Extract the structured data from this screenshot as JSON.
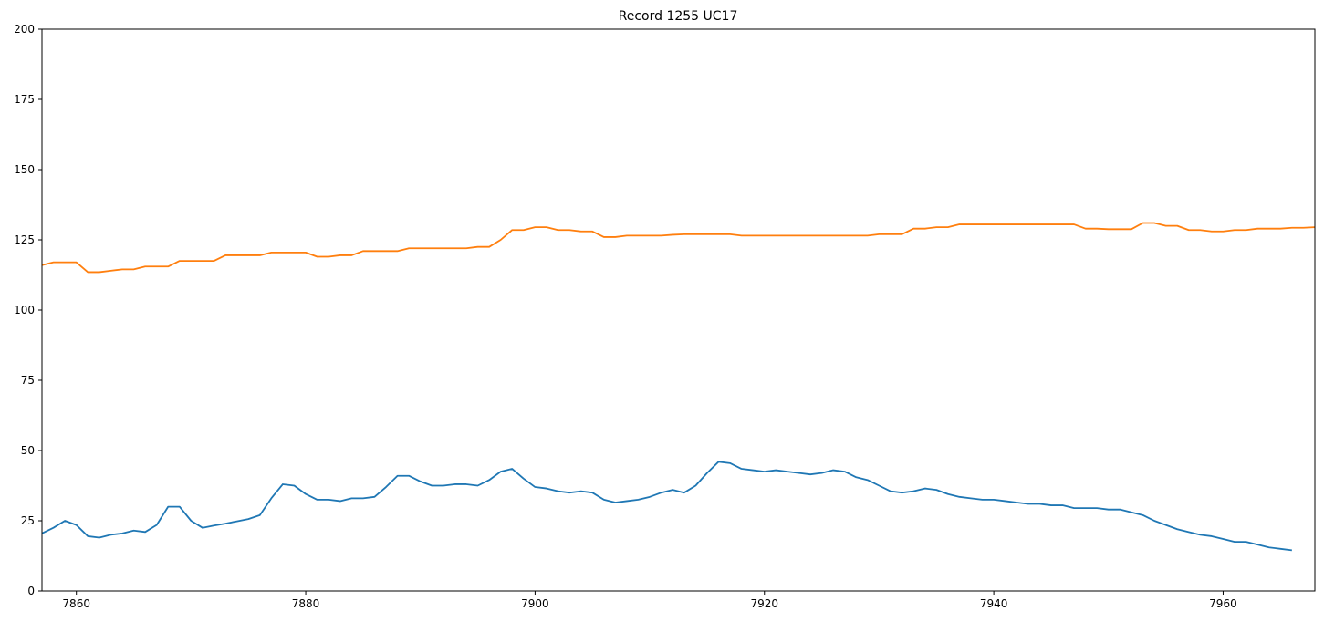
{
  "chart_data": {
    "type": "line",
    "title": "Record 1255 UC17",
    "xlabel": "",
    "ylabel": "",
    "xlim": [
      7857,
      7968
    ],
    "ylim": [
      0,
      200
    ],
    "xticks": [
      7860,
      7880,
      7900,
      7920,
      7940,
      7960
    ],
    "yticks": [
      0,
      25,
      50,
      75,
      100,
      125,
      150,
      175,
      200
    ],
    "grid": false,
    "x_start": 7857,
    "series": [
      {
        "color": "#1f77b4",
        "values": [
          20.5,
          22.5,
          25,
          23.5,
          19.5,
          19,
          20,
          20.5,
          21.5,
          21,
          23.5,
          30,
          30,
          25,
          22.5,
          23.3,
          24,
          24.8,
          25.6,
          27,
          33,
          38,
          37.5,
          34.5,
          32.5,
          32.5,
          32,
          33,
          33,
          33.5,
          37,
          41,
          41,
          39,
          37.5,
          37.5,
          38,
          38,
          37.5,
          39.5,
          42.5,
          43.5,
          40,
          37,
          36.5,
          35.5,
          35,
          35.5,
          35,
          32.5,
          31.5,
          32,
          32.5,
          33.5,
          35,
          36,
          35,
          37.5,
          42,
          46,
          45.5,
          43.5,
          43,
          42.5,
          43,
          42.5,
          42,
          41.5,
          42,
          43,
          42.5,
          40.5,
          39.5,
          37.5,
          35.5,
          35,
          35.5,
          36.5,
          36,
          34.5,
          33.5,
          33,
          32.5,
          32.5,
          32,
          31.5,
          31,
          31,
          30.5,
          30.5,
          29.5,
          29.5,
          29.5,
          29,
          29,
          28,
          27,
          25,
          23.5,
          22,
          21,
          20,
          19.5,
          18.5,
          17.5,
          17.5,
          16.5,
          15.5,
          15,
          14.5
        ]
      },
      {
        "color": "#ff7f0e",
        "values": [
          116,
          117,
          117,
          117,
          113.5,
          113.5,
          114,
          114.5,
          114.5,
          115.5,
          115.5,
          115.5,
          117.5,
          117.5,
          117.5,
          117.5,
          119.5,
          119.5,
          119.5,
          119.5,
          120.5,
          120.5,
          120.5,
          120.5,
          119,
          119,
          119.5,
          119.5,
          121,
          121,
          121,
          121,
          122,
          122,
          122,
          122,
          122,
          122,
          122.5,
          122.5,
          125,
          128.5,
          128.5,
          129.5,
          129.5,
          128.5,
          128.5,
          128,
          128,
          126,
          126,
          126.5,
          126.5,
          126.5,
          126.5,
          126.8,
          127,
          127,
          127,
          127,
          127,
          126.5,
          126.5,
          126.5,
          126.5,
          126.5,
          126.5,
          126.5,
          126.5,
          126.5,
          126.5,
          126.5,
          126.5,
          127,
          127,
          127,
          129,
          129,
          129.5,
          129.5,
          130.5,
          130.5,
          130.5,
          130.5,
          130.5,
          130.5,
          130.5,
          130.5,
          130.5,
          130.5,
          130.5,
          129,
          129,
          128.8,
          128.8,
          128.8,
          131,
          131,
          130,
          130,
          128.5,
          128.5,
          128,
          128,
          128.5,
          128.5,
          129,
          129,
          129,
          129.3,
          129.3,
          129.5
        ]
      }
    ]
  }
}
